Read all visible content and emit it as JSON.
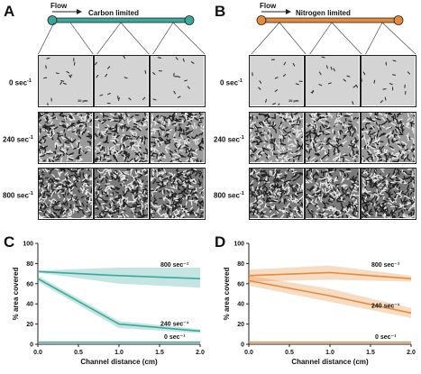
{
  "panels": {
    "A": {
      "letter": "A",
      "title": "Carbon limited",
      "flow": "Flow",
      "color": "#3aa89c"
    },
    "B": {
      "letter": "B",
      "title": "Nitrogen limited",
      "flow": "Flow",
      "color": "#e58b3c"
    },
    "C": {
      "letter": "C"
    },
    "D": {
      "letter": "D"
    }
  },
  "microscopy": {
    "rows": [
      {
        "label": "0 sec",
        "exp": "-1"
      },
      {
        "label": "240 sec",
        "exp": "-1"
      },
      {
        "label": "800 sec",
        "exp": "-1"
      }
    ],
    "scalebar": "10 µm"
  },
  "chart_data": [
    {
      "type": "line",
      "panel": "C",
      "color": "#3aa89c",
      "xlabel": "Channel distance (cm)",
      "ylabel": "% area covered",
      "xlim": [
        0,
        2.0
      ],
      "ylim": [
        0,
        100
      ],
      "xticks": [
        "0.0",
        "0.5",
        "1.0",
        "1.5",
        "2.0"
      ],
      "yticks": [
        "0",
        "20",
        "40",
        "60",
        "80",
        "100"
      ],
      "series": [
        {
          "name": "800 sec⁻¹",
          "x": [
            0,
            1.0,
            2.0
          ],
          "y": [
            72,
            68,
            65
          ],
          "lower": [
            71,
            60,
            56
          ],
          "upper": [
            73,
            76,
            76
          ]
        },
        {
          "name": "240 sec⁻¹",
          "x": [
            0,
            1.0,
            2.0
          ],
          "y": [
            65,
            20,
            13
          ],
          "lower": [
            62,
            16,
            11
          ],
          "upper": [
            68,
            23,
            15
          ]
        },
        {
          "name": "0 sec⁻¹",
          "x": [
            0,
            1.0,
            2.0
          ],
          "y": [
            2,
            2,
            2
          ],
          "lower": [
            1.5,
            1.5,
            1.5
          ],
          "upper": [
            2.5,
            2.5,
            2.5
          ]
        }
      ]
    },
    {
      "type": "line",
      "panel": "D",
      "color": "#e58b3c",
      "xlabel": "Channel distance (cm)",
      "ylabel": "% area covered",
      "xlim": [
        0,
        2.0
      ],
      "ylim": [
        0,
        100
      ],
      "xticks": [
        "0.0",
        "0.5",
        "1.0",
        "1.5",
        "2.0"
      ],
      "yticks": [
        "0",
        "20",
        "40",
        "60",
        "80",
        "100"
      ],
      "series": [
        {
          "name": "800 sec⁻¹",
          "x": [
            0,
            1.0,
            2.0
          ],
          "y": [
            68,
            71,
            65
          ],
          "lower": [
            62,
            64,
            62
          ],
          "upper": [
            74,
            78,
            68
          ]
        },
        {
          "name": "240 sec⁻¹",
          "x": [
            0,
            1.0,
            2.0
          ],
          "y": [
            63,
            48,
            31
          ],
          "lower": [
            58,
            42,
            26
          ],
          "upper": [
            68,
            55,
            36
          ]
        },
        {
          "name": "0 sec⁻¹",
          "x": [
            0,
            1.0,
            2.0
          ],
          "y": [
            2,
            2,
            2
          ],
          "lower": [
            1.5,
            1.5,
            1.5
          ],
          "upper": [
            2.5,
            2.5,
            2.5
          ]
        }
      ]
    }
  ]
}
